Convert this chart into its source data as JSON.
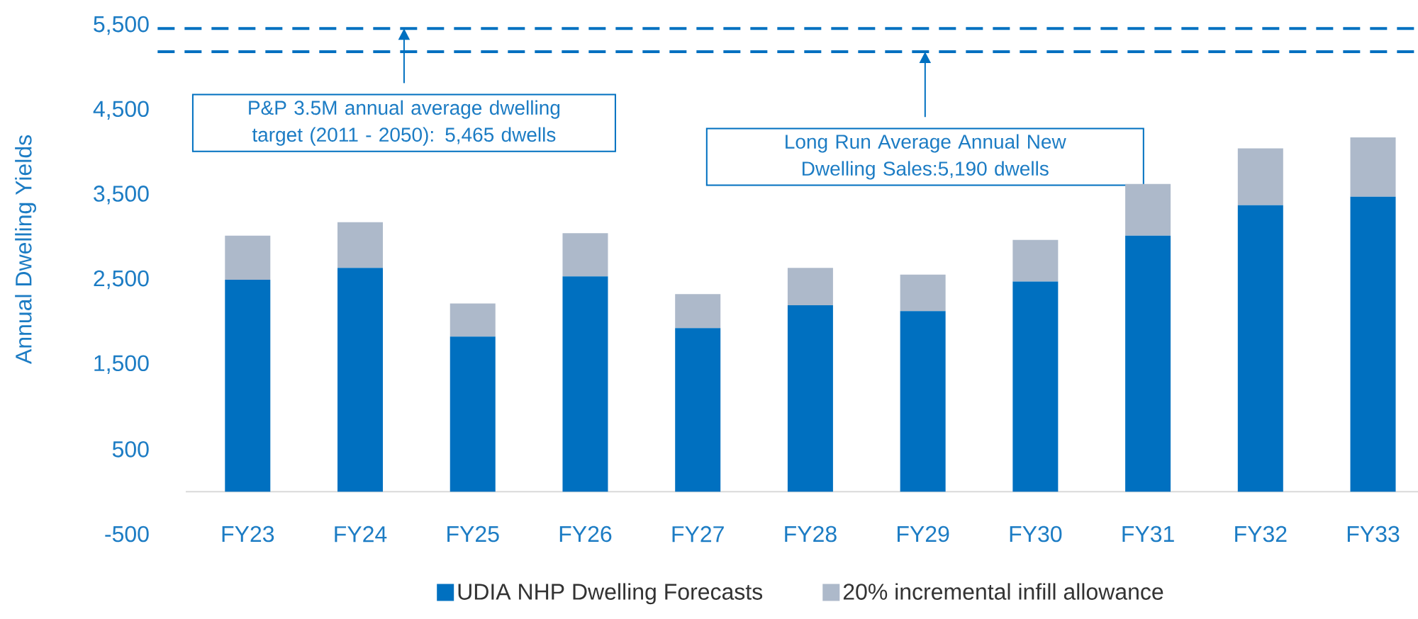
{
  "chart_data": {
    "type": "bar",
    "stacked": true,
    "ylabel": "Annual Dwelling Yields",
    "categories": [
      "FY23",
      "FY24",
      "FY25",
      "FY26",
      "FY27",
      "FY28",
      "FY29",
      "FY30",
      "FY31",
      "FY32",
      "FY33"
    ],
    "series": [
      {
        "name": "UDIA NHP Dwelling Forecasts",
        "color": "#0070c0",
        "values": [
          2500,
          2640,
          1830,
          2540,
          1930,
          2200,
          2130,
          2480,
          3020,
          3380,
          3480
        ]
      },
      {
        "name": "20% incremental infill allowance",
        "color": "#adb9ca",
        "values": [
          520,
          540,
          390,
          510,
          400,
          440,
          430,
          490,
          610,
          670,
          700
        ]
      }
    ],
    "ylim": [
      -500,
      5500
    ],
    "yticks": [
      {
        "value": -500,
        "label": "-500"
      },
      {
        "value": 500,
        "label": "500"
      },
      {
        "value": 1500,
        "label": "1,500"
      },
      {
        "value": 2500,
        "label": "2,500"
      },
      {
        "value": 3500,
        "label": "3,500"
      },
      {
        "value": 4500,
        "label": "4,500"
      },
      {
        "value": 5500,
        "label": "5,500"
      }
    ],
    "ref_lines": [
      {
        "axis": "y",
        "value": 5465,
        "label": "P&P 3.5M annual average dwelling target (2011 - 2050): 5,465 dwells",
        "color": "#0070c0",
        "line_style": "dashed"
      },
      {
        "axis": "y",
        "value": 5190,
        "label": "Long Run Average Annual New Dwelling Sales:5,190 dwells",
        "color": "#0070c0",
        "line_style": "dashed"
      }
    ],
    "legend": "bottom"
  }
}
